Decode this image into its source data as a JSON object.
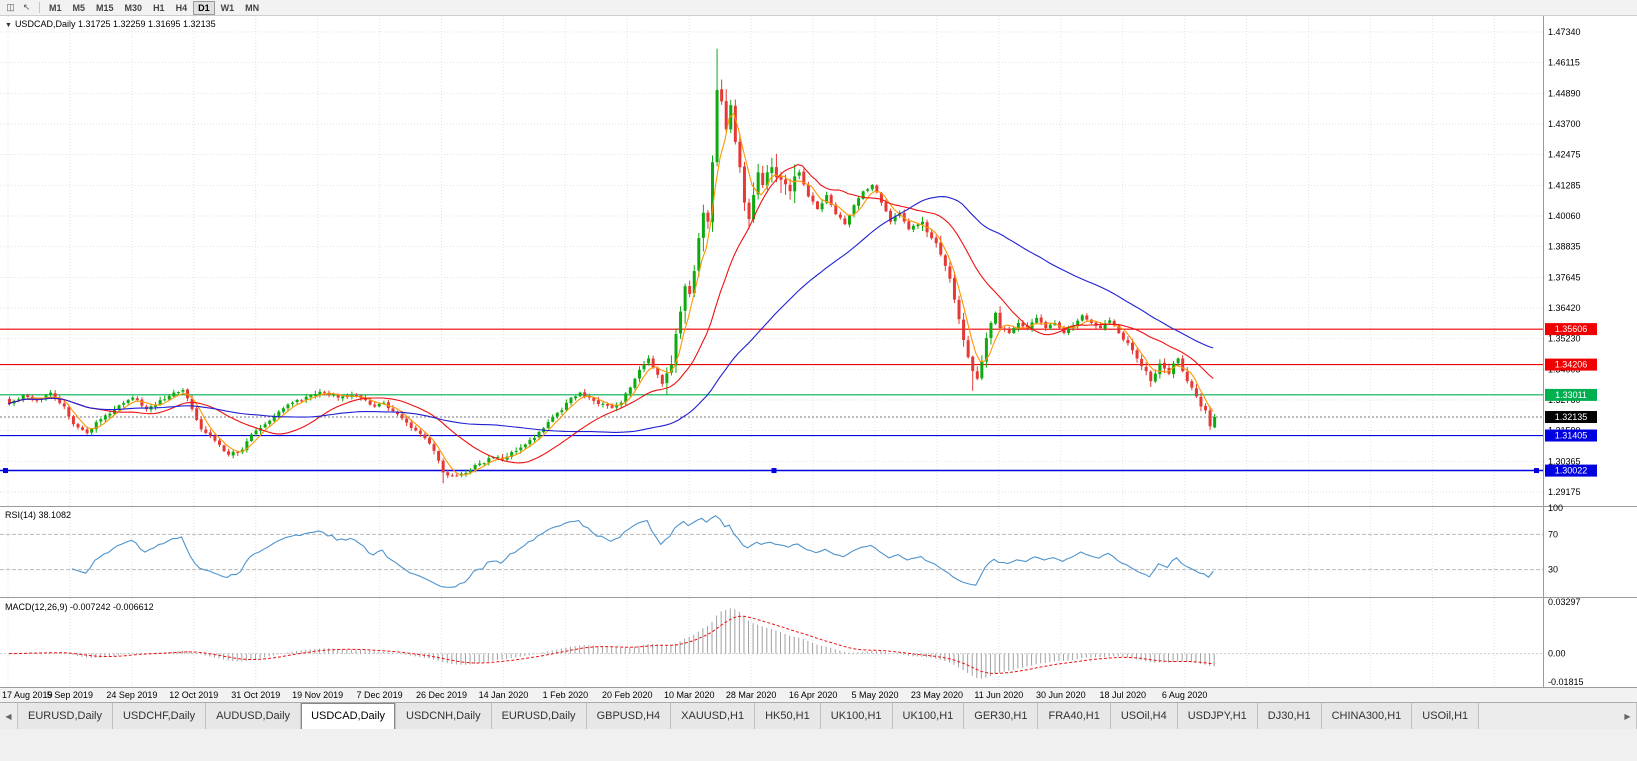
{
  "toolbar": {
    "icons": [
      {
        "name": "chart-icon",
        "glyph": "◫"
      },
      {
        "name": "cursor-icon",
        "glyph": "↖"
      }
    ],
    "timeframes": [
      "M1",
      "M5",
      "M15",
      "M30",
      "H1",
      "H4",
      "D1",
      "W1",
      "MN"
    ],
    "active_timeframe": "D1"
  },
  "chart": {
    "collapse_icon": "▼",
    "symbol": "USDCAD",
    "period": "Daily",
    "title_text": "USDCAD,Daily 1.31725 1.32259 1.31695 1.32135"
  },
  "rsi": {
    "label_text": "RSI(14) 38.1082",
    "axis_labels": [
      {
        "v": 100,
        "t": "100"
      },
      {
        "v": 70,
        "t": "70"
      },
      {
        "v": 30,
        "t": "30"
      }
    ],
    "levels": [
      70,
      30
    ]
  },
  "macd": {
    "label_text": "MACD(12,26,9) -0.007242 -0.006612",
    "axis_labels": [
      {
        "v": 0.03297,
        "t": "0.03297"
      },
      {
        "v": 0,
        "t": "0.00"
      },
      {
        "v": -0.01815,
        "t": "-0.01815"
      }
    ]
  },
  "chart_data": {
    "type": "candlestick",
    "symbol": "USDCAD",
    "timeframe": "Daily",
    "last_bar": {
      "open": 1.31725,
      "high": 1.32259,
      "low": 1.31695,
      "close": 1.32135
    },
    "current_price": {
      "value": 1.32135,
      "label": "1.32135",
      "tag_color": "#000000"
    },
    "bar_count": 265,
    "close_anchors": [
      [
        0,
        1.3265
      ],
      [
        3,
        1.33
      ],
      [
        6,
        1.328
      ],
      [
        9,
        1.331
      ],
      [
        12,
        1.3255
      ],
      [
        14,
        1.3185
      ],
      [
        17,
        1.315
      ],
      [
        20,
        1.3205
      ],
      [
        24,
        1.326
      ],
      [
        27,
        1.329
      ],
      [
        30,
        1.3245
      ],
      [
        33,
        1.328
      ],
      [
        36,
        1.331
      ],
      [
        38,
        1.332
      ],
      [
        40,
        1.3245
      ],
      [
        42,
        1.3165
      ],
      [
        45,
        1.312
      ],
      [
        48,
        1.3065
      ],
      [
        51,
        1.3085
      ],
      [
        53,
        1.3145
      ],
      [
        56,
        1.3185
      ],
      [
        59,
        1.3235
      ],
      [
        62,
        1.327
      ],
      [
        66,
        1.33
      ],
      [
        69,
        1.331
      ],
      [
        72,
        1.329
      ],
      [
        75,
        1.33
      ],
      [
        78,
        1.328
      ],
      [
        80,
        1.3255
      ],
      [
        82,
        1.327
      ],
      [
        85,
        1.3225
      ],
      [
        88,
        1.317
      ],
      [
        91,
        1.313
      ],
      [
        93,
        1.308
      ],
      [
        95,
        1.2995
      ],
      [
        97,
        1.298
      ],
      [
        99,
        1.299
      ],
      [
        101,
        1.3005
      ],
      [
        103,
        1.303
      ],
      [
        106,
        1.3055
      ],
      [
        108,
        1.3045
      ],
      [
        110,
        1.3075
      ],
      [
        113,
        1.3105
      ],
      [
        116,
        1.3155
      ],
      [
        119,
        1.3215
      ],
      [
        121,
        1.324
      ],
      [
        123,
        1.329
      ],
      [
        125,
        1.331
      ],
      [
        127,
        1.329
      ],
      [
        129,
        1.3265
      ],
      [
        132,
        1.325
      ],
      [
        134,
        1.327
      ],
      [
        136,
        1.333
      ],
      [
        138,
        1.34
      ],
      [
        140,
        1.3445
      ],
      [
        142,
        1.338
      ],
      [
        143,
        1.3345
      ],
      [
        145,
        1.342
      ],
      [
        147,
        1.363
      ],
      [
        148,
        1.373
      ],
      [
        149,
        1.37
      ],
      [
        150,
        1.379
      ],
      [
        151,
        1.392
      ],
      [
        152,
        1.402
      ],
      [
        153,
        1.3985
      ],
      [
        154,
        1.422
      ],
      [
        155,
        1.4505
      ],
      [
        156,
        1.446
      ],
      [
        157,
        1.435
      ],
      [
        158,
        1.4445
      ],
      [
        159,
        1.43
      ],
      [
        160,
        1.42
      ],
      [
        161,
        1.406
      ],
      [
        162,
        1.3995
      ],
      [
        163,
        1.409
      ],
      [
        164,
        1.418
      ],
      [
        165,
        1.413
      ],
      [
        167,
        1.42
      ],
      [
        169,
        1.415
      ],
      [
        171,
        1.4105
      ],
      [
        173,
        1.418
      ],
      [
        175,
        1.4085
      ],
      [
        177,
        1.4035
      ],
      [
        179,
        1.409
      ],
      [
        181,
        1.4015
      ],
      [
        183,
        1.3975
      ],
      [
        185,
        1.405
      ],
      [
        187,
        1.4105
      ],
      [
        189,
        1.413
      ],
      [
        191,
        1.406
      ],
      [
        193,
        1.3985
      ],
      [
        195,
        1.402
      ],
      [
        197,
        1.3955
      ],
      [
        200,
        1.3985
      ],
      [
        202,
        1.392
      ],
      [
        204,
        1.3855
      ],
      [
        206,
        1.376
      ],
      [
        208,
        1.36
      ],
      [
        210,
        1.345
      ],
      [
        211,
        1.3395
      ],
      [
        212,
        1.3365
      ],
      [
        213,
        1.3435
      ],
      [
        214,
        1.3525
      ],
      [
        215,
        1.3585
      ],
      [
        216,
        1.3625
      ],
      [
        217,
        1.3565
      ],
      [
        219,
        1.3545
      ],
      [
        221,
        1.3585
      ],
      [
        223,
        1.356
      ],
      [
        225,
        1.3605
      ],
      [
        227,
        1.3565
      ],
      [
        229,
        1.3585
      ],
      [
        231,
        1.3545
      ],
      [
        233,
        1.3575
      ],
      [
        235,
        1.3615
      ],
      [
        237,
        1.3585
      ],
      [
        239,
        1.3565
      ],
      [
        241,
        1.3595
      ],
      [
        243,
        1.3545
      ],
      [
        245,
        1.3505
      ],
      [
        247,
        1.3445
      ],
      [
        249,
        1.3395
      ],
      [
        250,
        1.3355
      ],
      [
        251,
        1.3385
      ],
      [
        252,
        1.3425
      ],
      [
        253,
        1.3405
      ],
      [
        254,
        1.3385
      ],
      [
        255,
        1.3425
      ],
      [
        256,
        1.3445
      ],
      [
        257,
        1.3395
      ],
      [
        258,
        1.3355
      ],
      [
        259,
        1.333
      ],
      [
        260,
        1.3295
      ],
      [
        261,
        1.3255
      ],
      [
        262,
        1.324
      ],
      [
        263,
        1.3177
      ],
      [
        264,
        1.32135
      ]
    ],
    "wick_overrides": [
      [
        95,
        "low",
        1.2952
      ],
      [
        155,
        "high",
        1.4668
      ],
      [
        211,
        "low",
        1.3317
      ],
      [
        250,
        "low",
        1.3332
      ]
    ],
    "price_axis_labels": [
      "1.47340",
      "1.46115",
      "1.44890",
      "1.43700",
      "1.42475",
      "1.41285",
      "1.40060",
      "1.38835",
      "1.37645",
      "1.36420",
      "1.35230",
      "1.34005",
      "1.32780",
      "1.31590",
      "1.30365",
      "1.29175"
    ],
    "date_labels": [
      "17 Aug 2019",
      "5 Sep 2019",
      "24 Sep 2019",
      "12 Oct 2019",
      "31 Oct 2019",
      "19 Nov 2019",
      "7 Dec 2019",
      "26 Dec 2019",
      "14 Jan 2020",
      "1 Feb 2020",
      "20 Feb 2020",
      "10 Mar 2020",
      "28 Mar 2020",
      "16 Apr 2020",
      "5 May 2020",
      "23 May 2020",
      "11 Jun 2020",
      "30 Jun 2020",
      "18 Jul 2020",
      "6 Aug 2020"
    ],
    "hlines": [
      {
        "price": 1.35606,
        "label": "1.35606",
        "color": "#f00000",
        "selected": false
      },
      {
        "price": 1.34206,
        "label": "1.34206",
        "color": "#f00000",
        "selected": false
      },
      {
        "price": 1.33011,
        "label": "1.33011",
        "color": "#00b050",
        "selected": false
      },
      {
        "price": 1.31405,
        "label": "1.31405",
        "color": "#0000e0",
        "selected": false
      },
      {
        "price": 1.30022,
        "label": "1.30022",
        "color": "#0000e0",
        "selected": true
      }
    ],
    "moving_averages": [
      {
        "name": "ma-fast",
        "period": 5,
        "color": "#ff9500"
      },
      {
        "name": "ma-medium",
        "period": 20,
        "color": "#ee1111"
      },
      {
        "name": "ma-slow",
        "period": 55,
        "color": "#1f1fd4"
      }
    ],
    "indicators": {
      "rsi": {
        "period": 14,
        "current": 38.1082
      },
      "macd": {
        "fast": 12,
        "slow": 26,
        "signal": 9,
        "current": -0.007242,
        "current_signal": -0.006612
      }
    },
    "colors": {
      "up": "#0faa0f",
      "down": "#e53935",
      "rsi_line": "#4f94cd",
      "macd_hist": "#a0a0a0",
      "macd_signal": "#ee1111",
      "grid": "#e2e2e2"
    }
  },
  "tabbar": {
    "scroll_left": "◀",
    "scroll_right": "▶",
    "active_index": 3,
    "tabs": [
      "EURUSD,Daily",
      "USDCHF,Daily",
      "AUDUSD,Daily",
      "USDCAD,Daily",
      "USDCNH,Daily",
      "EURUSD,Daily",
      "GBPUSD,H4",
      "XAUUSD,H1",
      "HK50,H1",
      "UK100,H1",
      "UK100,H1",
      "GER30,H1",
      "FRA40,H1",
      "USOil,H4",
      "USDJPY,H1",
      "DJ30,H1",
      "CHINA300,H1",
      "USOil,H1"
    ]
  }
}
